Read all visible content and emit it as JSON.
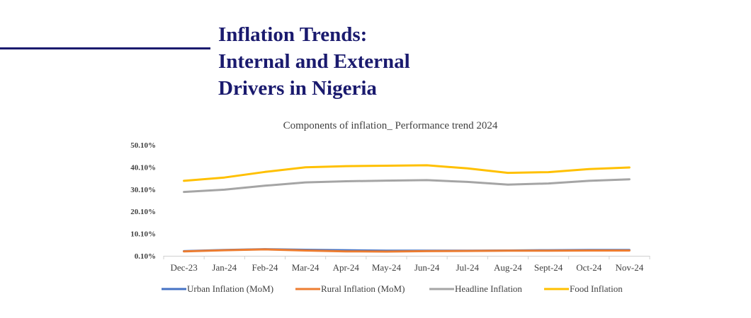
{
  "slide": {
    "title_lines": [
      "Inflation Trends:",
      "Internal and External",
      "Drivers in Nigeria"
    ]
  },
  "colors": {
    "title": "#1a1a6e",
    "axis": "#d0d0d0",
    "text": "#404040"
  },
  "chart_data": {
    "type": "line",
    "title": "Components of inflation_ Performance trend 2024",
    "categories": [
      "Dec-23",
      "Jan-24",
      "Feb-24",
      "Mar-24",
      "Apr-24",
      "May-24",
      "Jun-24",
      "Jul-24",
      "Aug-24",
      "Sept-24",
      "Oct-24",
      "Nov-24"
    ],
    "y_ticks": [
      "50.10%",
      "40.10%",
      "30.10%",
      "20.10%",
      "10.10%",
      "0.10%"
    ],
    "ylim": [
      0.1,
      50.1
    ],
    "grid": false,
    "legend_position": "bottom",
    "series": [
      {
        "name": "Urban Inflation (MoM)",
        "color": "#4472c4",
        "values": [
          2.2,
          2.7,
          3.1,
          2.8,
          2.6,
          2.4,
          2.4,
          2.4,
          2.5,
          2.6,
          2.7,
          2.7
        ]
      },
      {
        "name": "Rural Inflation (MoM)",
        "color": "#ed7d31",
        "values": [
          2.1,
          2.6,
          3.0,
          2.5,
          2.1,
          2.0,
          2.2,
          2.3,
          2.4,
          2.4,
          2.5,
          2.5
        ]
      },
      {
        "name": "Headline Inflation",
        "color": "#a5a5a5",
        "values": [
          28.9,
          29.9,
          31.7,
          33.2,
          33.7,
          34.0,
          34.2,
          33.4,
          32.2,
          32.7,
          33.9,
          34.6
        ]
      },
      {
        "name": "Food Inflation",
        "color": "#ffc000",
        "values": [
          33.9,
          35.4,
          37.9,
          40.0,
          40.5,
          40.7,
          40.9,
          39.5,
          37.5,
          37.8,
          39.2,
          39.9
        ]
      }
    ]
  }
}
